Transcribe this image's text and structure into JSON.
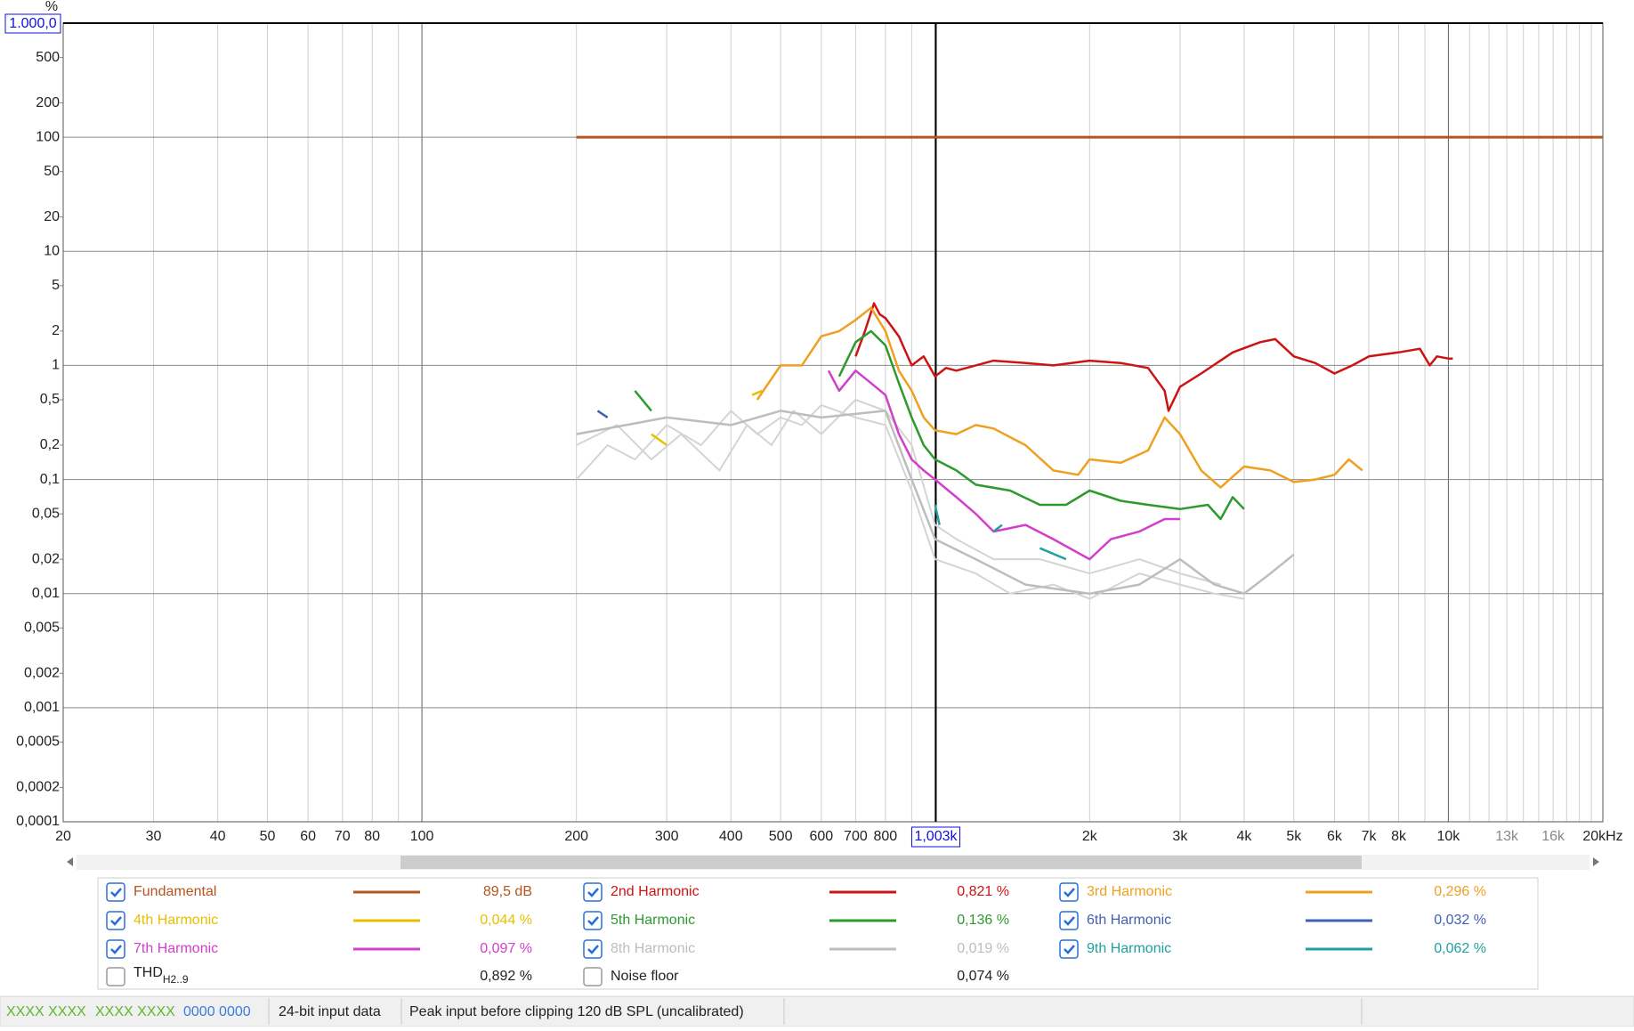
{
  "chart_data": {
    "type": "line",
    "y_unit": "%",
    "log_x": true,
    "log_y": true,
    "grid": true,
    "xlim": [
      20,
      20000
    ],
    "ylim": [
      0.0001,
      1000
    ],
    "xticks": [
      20,
      30,
      40,
      50,
      60,
      70,
      80,
      100,
      200,
      300,
      400,
      500,
      600,
      700,
      800,
      {
        "value": 2000,
        "label": "2k"
      },
      {
        "value": 3000,
        "label": "3k"
      },
      {
        "value": 4000,
        "label": "4k"
      },
      {
        "value": 5000,
        "label": "5k"
      },
      {
        "value": 6000,
        "label": "6k"
      },
      {
        "value": 7000,
        "label": "7k"
      },
      {
        "value": 8000,
        "label": "8k"
      },
      {
        "value": 10000,
        "label": "10k"
      },
      {
        "value": 13000,
        "label": "13k"
      },
      {
        "value": 16000,
        "label": "16k"
      },
      {
        "value": 20000,
        "label": "20kHz"
      }
    ],
    "xminor": [
      90,
      900,
      1000,
      9000,
      11000,
      12000,
      14000,
      15000,
      17000,
      18000,
      19000
    ],
    "yticks": [
      500,
      200,
      100,
      50,
      20,
      10,
      5,
      2,
      1,
      {
        "value": 0.5,
        "label": "0,5"
      },
      {
        "value": 0.2,
        "label": "0,2"
      },
      {
        "value": 0.1,
        "label": "0,1"
      },
      {
        "value": 0.05,
        "label": "0,05"
      },
      {
        "value": 0.02,
        "label": "0,02"
      },
      {
        "value": 0.01,
        "label": "0,01"
      },
      {
        "value": 0.005,
        "label": "0,005"
      },
      {
        "value": 0.002,
        "label": "0,002"
      },
      {
        "value": 0.001,
        "label": "0,001"
      },
      {
        "value": 0.0005,
        "label": "0,0005"
      },
      {
        "value": 0.0002,
        "label": "0,0002"
      },
      {
        "value": 0.0001,
        "label": "0,0001"
      }
    ],
    "x_cursor": {
      "value": 1003,
      "label": "1,003k"
    },
    "y_cursor": {
      "value": 1000,
      "label": "1.000,0"
    },
    "background_traces": [
      {
        "color": "#d4d4d4",
        "x": [
          200,
          230,
          260,
          300,
          350,
          400,
          450,
          500,
          550,
          600,
          700,
          800,
          900,
          1000,
          1200,
          1400,
          1700,
          2000,
          2500,
          3000,
          3500,
          4000
        ],
        "values": [
          0.1,
          0.2,
          0.15,
          0.3,
          0.2,
          0.4,
          0.25,
          0.35,
          0.3,
          0.45,
          0.35,
          0.3,
          0.08,
          0.02,
          0.015,
          0.01,
          0.012,
          0.009,
          0.015,
          0.012,
          0.01,
          0.009
        ]
      },
      {
        "color": "#d4d4d4",
        "x": [
          200,
          240,
          280,
          320,
          380,
          430,
          480,
          530,
          600,
          700,
          800,
          900,
          1000,
          1100,
          1300,
          1600,
          2000,
          2500,
          3000,
          3600
        ],
        "values": [
          0.2,
          0.3,
          0.15,
          0.25,
          0.12,
          0.3,
          0.2,
          0.4,
          0.25,
          0.5,
          0.4,
          0.2,
          0.04,
          0.03,
          0.02,
          0.02,
          0.015,
          0.02,
          0.015,
          0.012
        ]
      }
    ],
    "series": [
      {
        "name": "Fundamental",
        "color": "#b5541c",
        "checked": true,
        "readout": "89,5 dB",
        "x": [
          200,
          20000
        ],
        "values": [
          100,
          100
        ]
      },
      {
        "name": "2nd Harmonic",
        "color": "#cc1414",
        "checked": true,
        "readout": "0,821 %",
        "x": [
          700,
          730,
          760,
          780,
          800,
          850,
          900,
          950,
          1000,
          1050,
          1100,
          1200,
          1300,
          1500,
          1700,
          2000,
          2300,
          2600,
          2800,
          2850,
          3000,
          3300,
          3800,
          4300,
          4600,
          5000,
          5500,
          6000,
          6500,
          7000,
          8000,
          8800,
          9200,
          9500,
          10000,
          10200
        ],
        "values": [
          1.2,
          2.0,
          3.5,
          2.8,
          2.6,
          1.8,
          1.0,
          1.2,
          0.8,
          0.95,
          0.9,
          1.0,
          1.1,
          1.05,
          1.0,
          1.1,
          1.05,
          0.95,
          0.6,
          0.4,
          0.65,
          0.85,
          1.3,
          1.6,
          1.7,
          1.2,
          1.05,
          0.85,
          1.0,
          1.2,
          1.3,
          1.4,
          1.0,
          1.2,
          1.15,
          1.15
        ]
      },
      {
        "name": "3rd Harmonic",
        "color": "#f0a020",
        "checked": true,
        "readout": "0,296 %",
        "x": [
          450,
          500,
          550,
          600,
          650,
          700,
          750,
          800,
          850,
          900,
          950,
          1000,
          1100,
          1200,
          1300,
          1500,
          1700,
          1900,
          2000,
          2300,
          2600,
          2800,
          3000,
          3300,
          3600,
          4000,
          4500,
          5000,
          5500,
          6000,
          6400,
          6800
        ],
        "values": [
          0.5,
          1.0,
          1.0,
          1.8,
          2.0,
          2.5,
          3.2,
          2.0,
          0.9,
          0.6,
          0.35,
          0.27,
          0.25,
          0.3,
          0.28,
          0.2,
          0.12,
          0.11,
          0.15,
          0.14,
          0.18,
          0.35,
          0.25,
          0.12,
          0.085,
          0.13,
          0.12,
          0.095,
          0.1,
          0.11,
          0.15,
          0.12
        ]
      },
      {
        "name": "4th Harmonic",
        "color": "#e8c000",
        "checked": true,
        "readout": "0,044 %",
        "x": [
          280,
          300,
          null,
          440,
          460
        ],
        "values": [
          0.25,
          0.2,
          null,
          0.55,
          0.6
        ]
      },
      {
        "name": "5th Harmonic",
        "color": "#2e9a2e",
        "checked": true,
        "readout": "0,136 %",
        "x": [
          260,
          280,
          null,
          650,
          700,
          750,
          800,
          850,
          900,
          950,
          1000,
          1100,
          1200,
          1400,
          1600,
          1800,
          2000,
          2300,
          2600,
          3000,
          3400,
          3600,
          3800,
          4000
        ],
        "values": [
          0.6,
          0.4,
          null,
          0.8,
          1.6,
          2.0,
          1.5,
          0.7,
          0.35,
          0.2,
          0.15,
          0.12,
          0.09,
          0.08,
          0.06,
          0.06,
          0.08,
          0.065,
          0.06,
          0.055,
          0.06,
          0.045,
          0.07,
          0.055
        ]
      },
      {
        "name": "6th Harmonic",
        "color": "#4060b0",
        "checked": true,
        "readout": "0,032 %",
        "x": [
          220,
          230
        ],
        "values": [
          0.4,
          0.35
        ]
      },
      {
        "name": "7th Harmonic",
        "color": "#d040c8",
        "checked": true,
        "readout": "0,097 %",
        "x": [
          620,
          650,
          700,
          750,
          800,
          850,
          900,
          950,
          1000,
          1100,
          1200,
          1300,
          1500,
          1700,
          2000,
          2200,
          2500,
          2800,
          3000
        ],
        "values": [
          0.9,
          0.6,
          0.9,
          0.7,
          0.55,
          0.25,
          0.15,
          0.12,
          0.1,
          0.07,
          0.05,
          0.035,
          0.04,
          0.03,
          0.02,
          0.03,
          0.035,
          0.045,
          0.045
        ]
      },
      {
        "name": "8th Harmonic",
        "color": "#bdbdbd",
        "checked": true,
        "readout": "0,019 %",
        "x": [
          200,
          250,
          300,
          400,
          500,
          600,
          800,
          900,
          1000,
          1200,
          1500,
          2000,
          2500,
          3000,
          3500,
          4000,
          4500,
          5000
        ],
        "values": [
          0.25,
          0.3,
          0.35,
          0.3,
          0.4,
          0.35,
          0.4,
          0.1,
          0.03,
          0.02,
          0.012,
          0.01,
          0.012,
          0.02,
          0.012,
          0.01,
          0.015,
          0.022
        ]
      },
      {
        "name": "9th Harmonic",
        "color": "#20a0a0",
        "checked": true,
        "readout": "0,062 %",
        "x": [
          1000,
          1020,
          null,
          1300,
          1350,
          null,
          1600,
          1800
        ],
        "values": [
          0.06,
          0.04,
          null,
          0.035,
          0.04,
          null,
          0.025,
          0.02
        ]
      },
      {
        "name": "THD",
        "name_sub": "H2..9",
        "color": "#222222",
        "checked": false,
        "readout": "0,892 %",
        "x": [],
        "values": []
      },
      {
        "name": "Noise floor",
        "color": "#a0522d",
        "checked": false,
        "readout": "0,074 %",
        "x": [],
        "values": []
      }
    ]
  },
  "status_bar": {
    "items": [
      {
        "text": "XXXX XXXX",
        "color": "#5cb82a"
      },
      {
        "text": "XXXX XXXX",
        "color": "#5cb82a"
      },
      {
        "text": "0000 0000",
        "color": "#3a7be0"
      },
      {
        "text": "24-bit input data",
        "color": "#222222"
      },
      {
        "text": "Peak input before clipping 120 dB SPL (uncalibrated)",
        "color": "#222222"
      }
    ]
  }
}
